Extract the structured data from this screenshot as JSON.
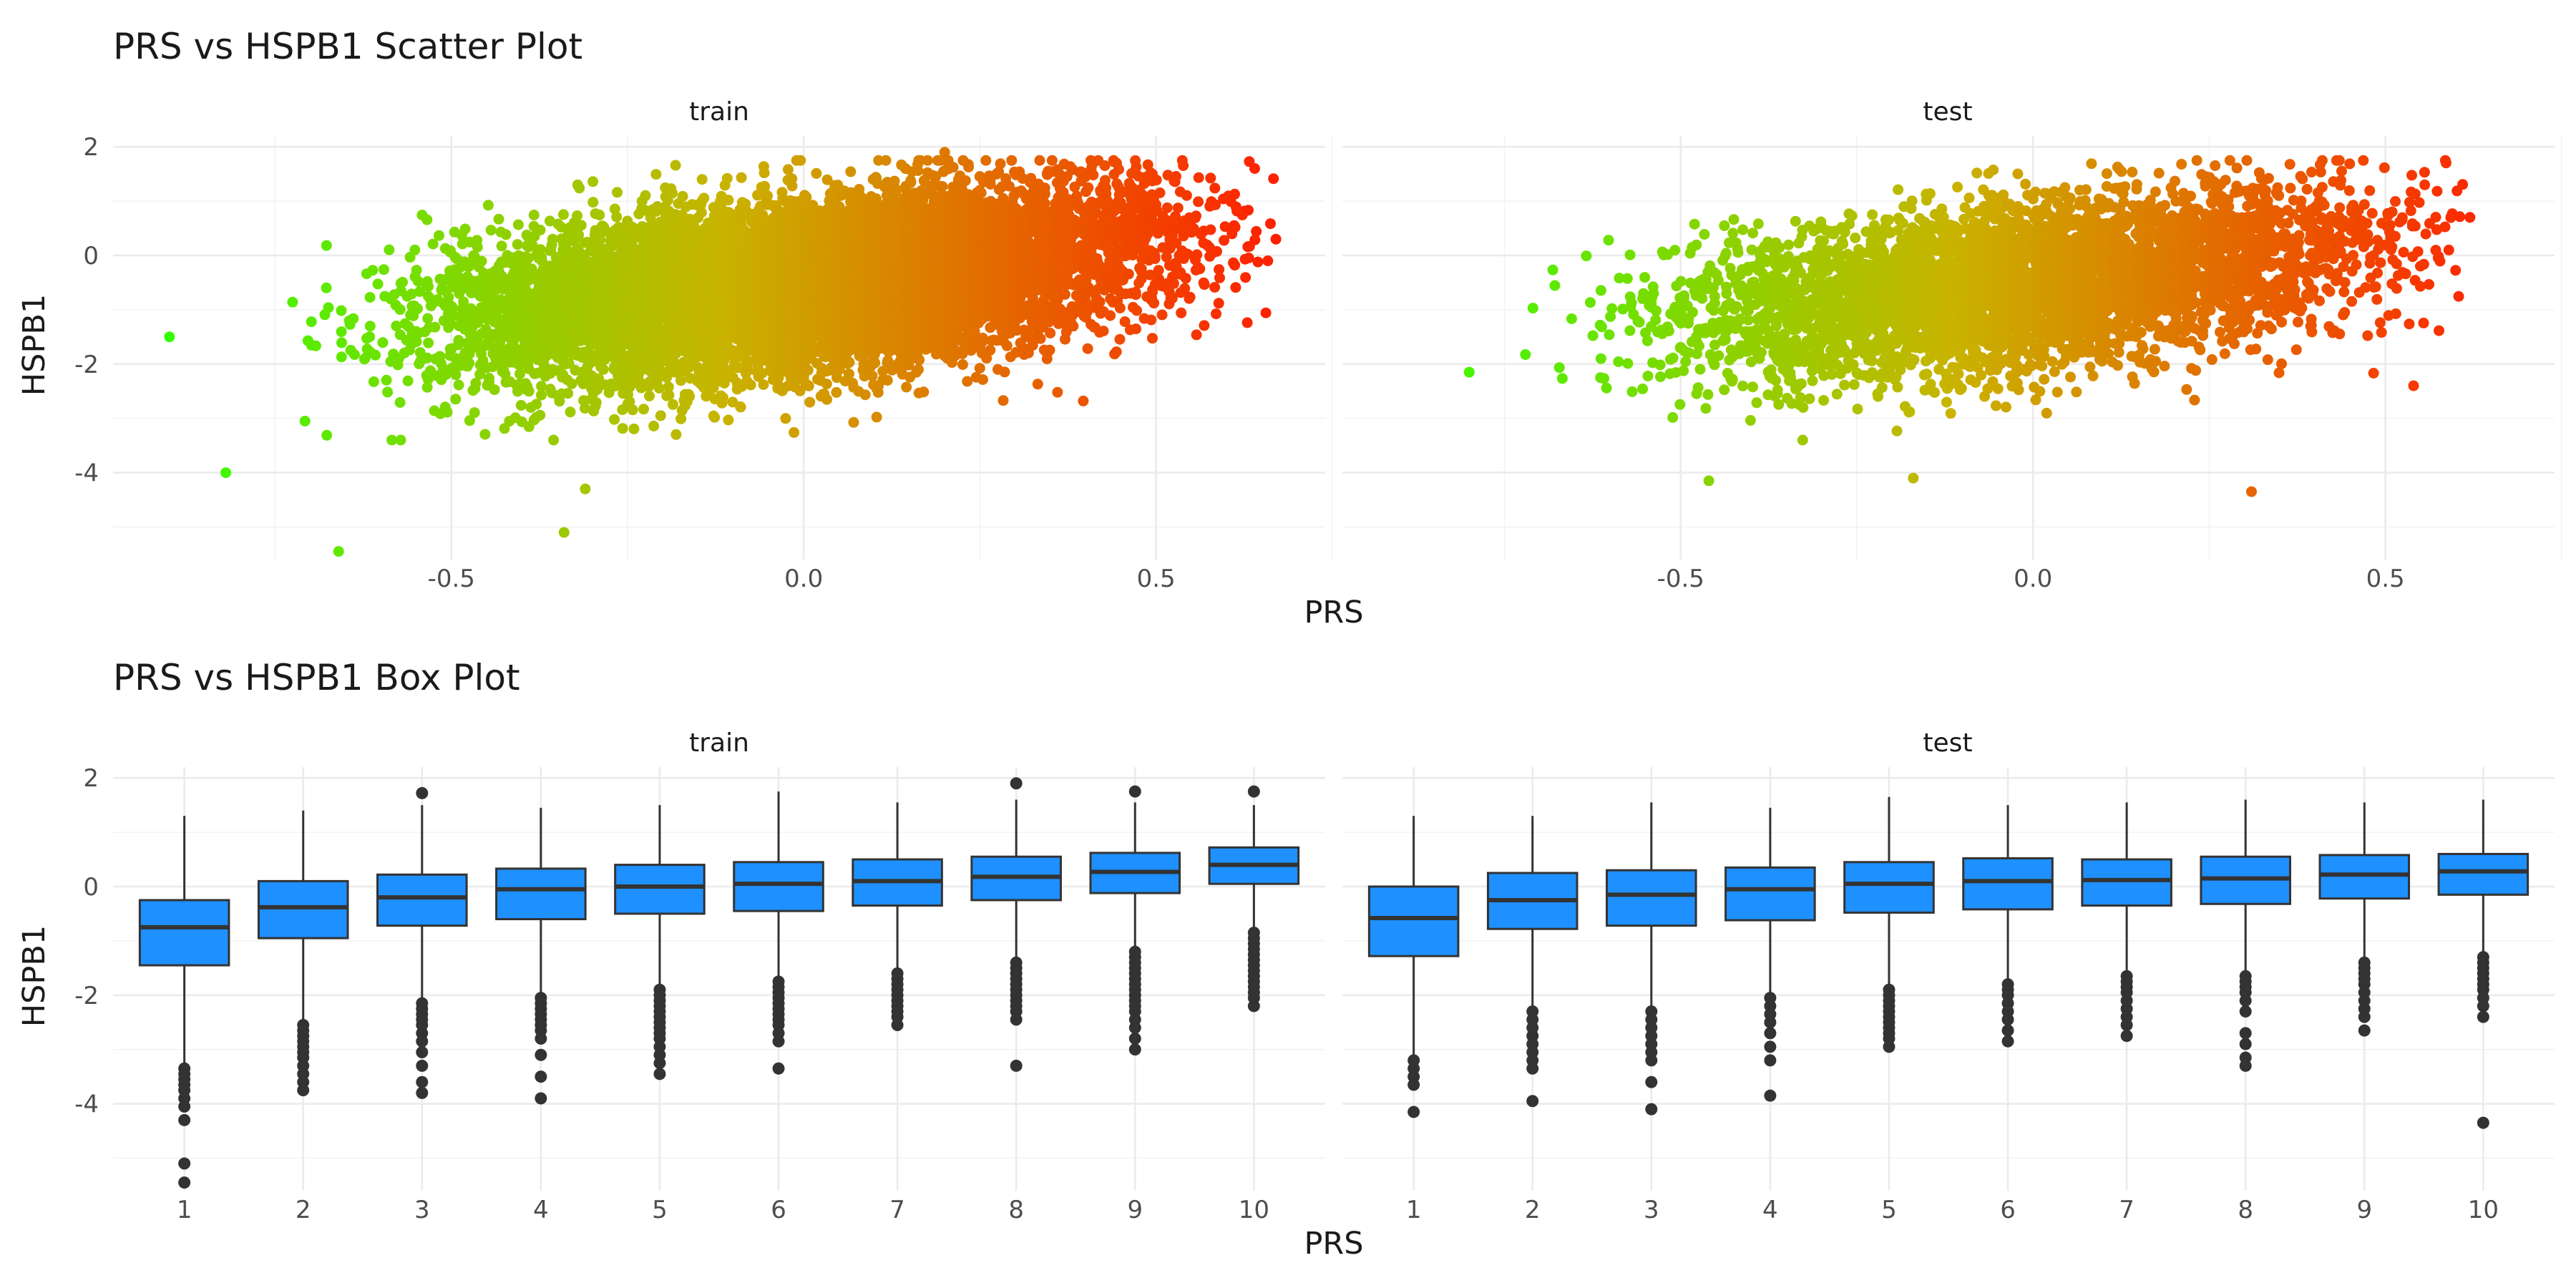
{
  "chart_data": [
    {
      "type": "scatter",
      "title": "PRS vs HSPB1 Scatter Plot",
      "xlabel": "PRS",
      "ylabel": "HSPB1",
      "facets": [
        "train",
        "test"
      ],
      "xlim": [
        -0.98,
        0.74
      ],
      "ylim": [
        -5.6,
        2.2
      ],
      "x_ticks": [
        -0.5,
        0.0,
        0.5
      ],
      "x_tick_labels": [
        "-0.5",
        "0.0",
        "0.5"
      ],
      "y_ticks": [
        -4,
        -2,
        0,
        2
      ],
      "y_tick_labels": [
        "-4",
        "-2",
        "0",
        "2"
      ],
      "grid": true,
      "color_gradient": {
        "low": "#33FF00",
        "mid": "#C8B400",
        "high": "#FF2000",
        "variable": "PRS"
      },
      "trend": {
        "slope": 1.4,
        "intercept": -0.45,
        "residual_sd": 0.72
      },
      "train": {
        "x_range": [
          -0.9,
          0.67
        ],
        "n_points": 9000,
        "notable_points": [
          [
            -0.9,
            -1.5
          ],
          [
            -0.82,
            -4.0
          ],
          [
            -0.66,
            -5.45
          ],
          [
            -0.34,
            -5.1
          ],
          [
            -0.31,
            -4.3
          ],
          [
            0.2,
            1.9
          ],
          [
            0.64,
            1.6
          ],
          [
            0.67,
            0.3
          ]
        ]
      },
      "test": {
        "x_range": [
          -0.8,
          0.62
        ],
        "n_points": 4500,
        "notable_points": [
          [
            -0.8,
            -2.15
          ],
          [
            -0.46,
            -4.15
          ],
          [
            -0.17,
            -4.1
          ],
          [
            0.31,
            -4.35
          ],
          [
            0.62,
            0.7
          ],
          [
            0.54,
            -2.4
          ],
          [
            0.59,
            0.1
          ]
        ]
      }
    },
    {
      "type": "box",
      "title": "PRS vs HSPB1 Box Plot",
      "xlabel": "PRS",
      "ylabel": "HSPB1",
      "facets": [
        "train",
        "test"
      ],
      "categories": [
        "1",
        "2",
        "3",
        "4",
        "5",
        "6",
        "7",
        "8",
        "9",
        "10"
      ],
      "ylim": [
        -5.6,
        2.2
      ],
      "y_ticks": [
        -4,
        -2,
        0,
        2
      ],
      "y_tick_labels": [
        "-4",
        "-2",
        "0",
        "2"
      ],
      "grid": true,
      "fill_color": "#1E90FF",
      "line_color": "#333333",
      "train": [
        {
          "q1": -1.45,
          "median": -0.75,
          "q3": -0.25,
          "low": -3.3,
          "high": 1.3,
          "outliers": [
            -3.35,
            -3.45,
            -3.55,
            -3.65,
            -3.75,
            -3.9,
            -4.05,
            -4.3,
            -5.1,
            -5.45
          ]
        },
        {
          "q1": -0.95,
          "median": -0.38,
          "q3": 0.1,
          "low": -2.5,
          "high": 1.4,
          "outliers": [
            -2.55,
            -2.65,
            -2.75,
            -2.85,
            -2.95,
            -3.05,
            -3.15,
            -3.3,
            -3.45,
            -3.6,
            -3.75
          ]
        },
        {
          "q1": -0.72,
          "median": -0.2,
          "q3": 0.22,
          "low": -2.1,
          "high": 1.5,
          "outliers": [
            1.72,
            -2.15,
            -2.25,
            -2.35,
            -2.45,
            -2.55,
            -2.7,
            -2.85,
            -3.05,
            -3.3,
            -3.6,
            -3.8
          ]
        },
        {
          "q1": -0.6,
          "median": -0.05,
          "q3": 0.33,
          "low": -2.0,
          "high": 1.45,
          "outliers": [
            -2.05,
            -2.15,
            -2.25,
            -2.35,
            -2.45,
            -2.55,
            -2.65,
            -2.8,
            -3.1,
            -3.5,
            -3.9
          ]
        },
        {
          "q1": -0.5,
          "median": 0.0,
          "q3": 0.4,
          "low": -1.85,
          "high": 1.5,
          "outliers": [
            -1.9,
            -2.0,
            -2.1,
            -2.2,
            -2.3,
            -2.4,
            -2.5,
            -2.6,
            -2.7,
            -2.8,
            -2.95,
            -3.1,
            -3.25,
            -3.45
          ]
        },
        {
          "q1": -0.45,
          "median": 0.05,
          "q3": 0.45,
          "low": -1.7,
          "high": 1.75,
          "outliers": [
            -1.75,
            -1.85,
            -1.95,
            -2.05,
            -2.15,
            -2.25,
            -2.35,
            -2.45,
            -2.55,
            -2.7,
            -2.85,
            -3.35
          ]
        },
        {
          "q1": -0.35,
          "median": 0.1,
          "q3": 0.5,
          "low": -1.55,
          "high": 1.55,
          "outliers": [
            -1.6,
            -1.7,
            -1.8,
            -1.9,
            -2.0,
            -2.1,
            -2.2,
            -2.3,
            -2.4,
            -2.55
          ]
        },
        {
          "q1": -0.25,
          "median": 0.18,
          "q3": 0.55,
          "low": -1.35,
          "high": 1.6,
          "outliers": [
            1.9,
            -1.4,
            -1.5,
            -1.6,
            -1.7,
            -1.8,
            -1.9,
            -2.0,
            -2.1,
            -2.2,
            -2.3,
            -2.45,
            -3.3
          ]
        },
        {
          "q1": -0.12,
          "median": 0.27,
          "q3": 0.62,
          "low": -1.15,
          "high": 1.55,
          "outliers": [
            1.75,
            -1.2,
            -1.3,
            -1.4,
            -1.5,
            -1.6,
            -1.7,
            -1.8,
            -1.9,
            -2.0,
            -2.1,
            -2.2,
            -2.3,
            -2.45,
            -2.6,
            -2.8,
            -3.0
          ]
        },
        {
          "q1": 0.05,
          "median": 0.4,
          "q3": 0.72,
          "low": -0.8,
          "high": 1.5,
          "outliers": [
            1.75,
            -0.85,
            -0.95,
            -1.05,
            -1.15,
            -1.25,
            -1.35,
            -1.45,
            -1.55,
            -1.65,
            -1.75,
            -1.85,
            -1.95,
            -2.05,
            -2.2
          ]
        }
      ],
      "test": [
        {
          "q1": -1.28,
          "median": -0.58,
          "q3": 0.0,
          "low": -3.1,
          "high": 1.3,
          "outliers": [
            -3.2,
            -3.35,
            -3.5,
            -3.65,
            -4.15
          ]
        },
        {
          "q1": -0.78,
          "median": -0.25,
          "q3": 0.25,
          "low": -2.25,
          "high": 1.3,
          "outliers": [
            -2.3,
            -2.45,
            -2.6,
            -2.75,
            -2.9,
            -3.05,
            -3.2,
            -3.35,
            -3.95
          ]
        },
        {
          "q1": -0.72,
          "median": -0.15,
          "q3": 0.3,
          "low": -2.25,
          "high": 1.55,
          "outliers": [
            -2.3,
            -2.45,
            -2.6,
            -2.75,
            -2.9,
            -3.05,
            -3.2,
            -3.6,
            -4.1
          ]
        },
        {
          "q1": -0.62,
          "median": -0.05,
          "q3": 0.35,
          "low": -2.0,
          "high": 1.45,
          "outliers": [
            -2.05,
            -2.2,
            -2.35,
            -2.5,
            -2.7,
            -2.95,
            -3.2,
            -3.85
          ]
        },
        {
          "q1": -0.48,
          "median": 0.05,
          "q3": 0.45,
          "low": -1.85,
          "high": 1.65,
          "outliers": [
            -1.9,
            -2.0,
            -2.1,
            -2.2,
            -2.3,
            -2.4,
            -2.5,
            -2.6,
            -2.7,
            -2.8,
            -2.95
          ]
        },
        {
          "q1": -0.42,
          "median": 0.1,
          "q3": 0.52,
          "low": -1.75,
          "high": 1.5,
          "outliers": [
            -1.8,
            -1.9,
            -2.0,
            -2.15,
            -2.3,
            -2.45,
            -2.65,
            -2.85
          ]
        },
        {
          "q1": -0.35,
          "median": 0.12,
          "q3": 0.5,
          "low": -1.6,
          "high": 1.55,
          "outliers": [
            -1.65,
            -1.75,
            -1.85,
            -1.95,
            -2.1,
            -2.25,
            -2.4,
            -2.55,
            -2.75
          ]
        },
        {
          "q1": -0.32,
          "median": 0.15,
          "q3": 0.55,
          "low": -1.6,
          "high": 1.6,
          "outliers": [
            -1.65,
            -1.75,
            -1.85,
            -1.95,
            -2.1,
            -2.3,
            -2.7,
            -2.9,
            -3.15,
            -3.3
          ]
        },
        {
          "q1": -0.22,
          "median": 0.22,
          "q3": 0.58,
          "low": -1.35,
          "high": 1.55,
          "outliers": [
            -1.4,
            -1.5,
            -1.6,
            -1.7,
            -1.8,
            -1.95,
            -2.1,
            -2.25,
            -2.4,
            -2.65
          ]
        },
        {
          "q1": -0.15,
          "median": 0.28,
          "q3": 0.6,
          "low": -1.25,
          "high": 1.6,
          "outliers": [
            -1.3,
            -1.4,
            -1.5,
            -1.6,
            -1.7,
            -1.8,
            -1.9,
            -2.05,
            -2.2,
            -2.4,
            -4.35
          ]
        }
      ]
    }
  ]
}
